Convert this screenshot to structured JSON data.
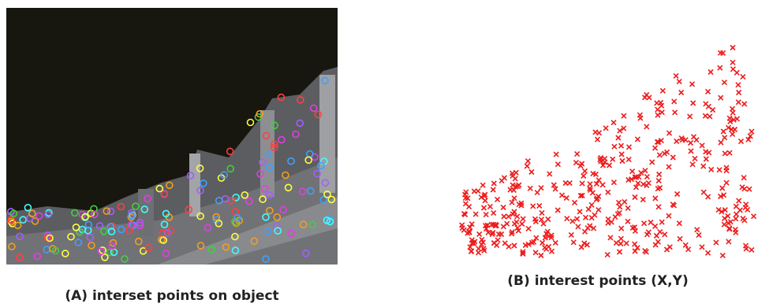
{
  "figure": {
    "panels": [
      {
        "caption": "(A) interset points on object"
      },
      {
        "caption": "(B) interest points (X,Y)"
      }
    ]
  }
}
